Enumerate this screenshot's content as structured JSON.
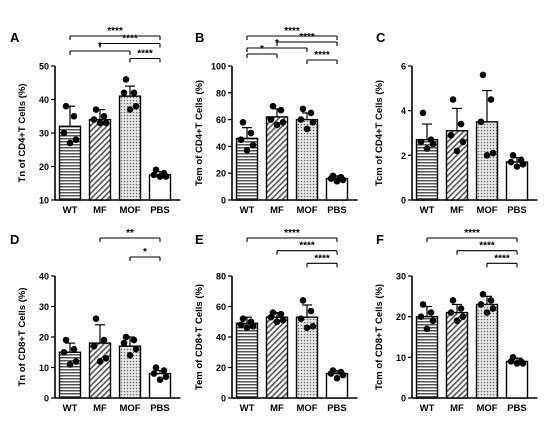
{
  "chart_data": [
    {
      "panel": "A",
      "type": "bar",
      "ylabel": "Tn of CD4+T Cells (%)",
      "ylim": [
        10,
        50
      ],
      "yticks": [
        10,
        20,
        30,
        40,
        50
      ],
      "categories": [
        "WT",
        "MF",
        "MOF",
        "PBS"
      ],
      "values": [
        32,
        34,
        41,
        17.5
      ],
      "errors": [
        6,
        3,
        3,
        1
      ],
      "points": [
        [
          38,
          35,
          30,
          28,
          27
        ],
        [
          37,
          35,
          34,
          33,
          33
        ],
        [
          46,
          42,
          42,
          38,
          37
        ],
        [
          19,
          18,
          17.5,
          17,
          17
        ]
      ],
      "significance": [
        {
          "from": 0,
          "to": 3,
          "label": "****"
        },
        {
          "from": 1,
          "to": 3,
          "label": "****"
        },
        {
          "from": 0,
          "to": 2,
          "label": "*"
        },
        {
          "from": 2,
          "to": 3,
          "label": "****"
        }
      ]
    },
    {
      "panel": "B",
      "type": "bar",
      "ylabel": "Tem of CD4+T Cells (%)",
      "ylim": [
        0,
        100
      ],
      "yticks": [
        0,
        20,
        40,
        60,
        80,
        100
      ],
      "categories": [
        "WT",
        "MF",
        "MOF",
        "PBS"
      ],
      "values": [
        46,
        62,
        60,
        16
      ],
      "errors": [
        8,
        6,
        5,
        2
      ],
      "points": [
        [
          58,
          50,
          45,
          41,
          37
        ],
        [
          70,
          67,
          60,
          58,
          56
        ],
        [
          68,
          65,
          60,
          58,
          53
        ],
        [
          18,
          17,
          16,
          15,
          14
        ]
      ],
      "significance": [
        {
          "from": 0,
          "to": 3,
          "label": "****"
        },
        {
          "from": 1,
          "to": 3,
          "label": "****"
        },
        {
          "from": 0,
          "to": 2,
          "label": "*"
        },
        {
          "from": 0,
          "to": 1,
          "label": "*"
        },
        {
          "from": 2,
          "to": 3,
          "label": "****"
        }
      ]
    },
    {
      "panel": "C",
      "type": "bar",
      "ylabel": "Tcm of CD4+T Cells (%)",
      "ylim": [
        0,
        6
      ],
      "yticks": [
        0,
        2,
        4,
        6
      ],
      "categories": [
        "WT",
        "MF",
        "MOF",
        "PBS"
      ],
      "values": [
        2.7,
        3.1,
        3.5,
        1.7
      ],
      "errors": [
        0.7,
        1.0,
        1.4,
        0.2
      ],
      "points": [
        [
          3.9,
          2.7,
          2.6,
          2.5,
          2.3
        ],
        [
          4.5,
          3.4,
          2.9,
          2.6,
          2.2
        ],
        [
          5.6,
          4.5,
          3.5,
          2.1,
          2.0
        ],
        [
          2.0,
          1.8,
          1.7,
          1.6,
          1.5
        ]
      ],
      "significance": []
    },
    {
      "panel": "D",
      "type": "bar",
      "ylabel": "Tn of CD8+T Cells (%)",
      "ylim": [
        0,
        40
      ],
      "yticks": [
        0,
        10,
        20,
        30,
        40
      ],
      "categories": [
        "WT",
        "MF",
        "MOF",
        "PBS"
      ],
      "values": [
        15,
        18,
        17,
        8
      ],
      "errors": [
        3,
        6,
        3,
        1
      ],
      "points": [
        [
          19,
          16,
          15,
          12,
          11
        ],
        [
          26,
          19,
          17,
          13,
          12
        ],
        [
          20,
          19,
          18,
          16,
          14
        ],
        [
          10,
          9,
          8,
          7,
          6
        ]
      ],
      "significance": [
        {
          "from": 1,
          "to": 3,
          "label": "**"
        },
        {
          "from": 2,
          "to": 3,
          "label": "*"
        }
      ]
    },
    {
      "panel": "E",
      "type": "bar",
      "ylabel": "Tem of CD8+T Cells (%)",
      "ylim": [
        0,
        80
      ],
      "yticks": [
        0,
        20,
        40,
        60,
        80
      ],
      "categories": [
        "WT",
        "MF",
        "MOF",
        "PBS"
      ],
      "values": [
        49,
        53,
        53,
        16
      ],
      "errors": [
        4,
        3,
        8,
        2
      ],
      "points": [
        [
          52,
          50,
          48,
          47,
          46
        ],
        [
          56,
          55,
          53,
          51,
          50
        ],
        [
          64,
          57,
          52,
          47,
          46
        ],
        [
          18,
          17,
          16,
          15,
          13
        ]
      ],
      "significance": [
        {
          "from": 0,
          "to": 3,
          "label": "****"
        },
        {
          "from": 1,
          "to": 3,
          "label": "****"
        },
        {
          "from": 2,
          "to": 3,
          "label": "****"
        }
      ]
    },
    {
      "panel": "F",
      "type": "bar",
      "ylabel": "Tcm of CD8+T Cells (%)",
      "ylim": [
        0,
        30
      ],
      "yticks": [
        0,
        10,
        20,
        30
      ],
      "categories": [
        "WT",
        "MF",
        "MOF",
        "PBS"
      ],
      "values": [
        20,
        21,
        23,
        9
      ],
      "errors": [
        2.5,
        2,
        2,
        0.8
      ],
      "points": [
        [
          23,
          21,
          20,
          19,
          17
        ],
        [
          24,
          22,
          21,
          20,
          19
        ],
        [
          25.5,
          24,
          23,
          22,
          21
        ],
        [
          10,
          9,
          9,
          8.5,
          8.5
        ]
      ],
      "significance": [
        {
          "from": 0,
          "to": 3,
          "label": "****"
        },
        {
          "from": 1,
          "to": 3,
          "label": "****"
        },
        {
          "from": 2,
          "to": 3,
          "label": "****"
        }
      ]
    }
  ]
}
